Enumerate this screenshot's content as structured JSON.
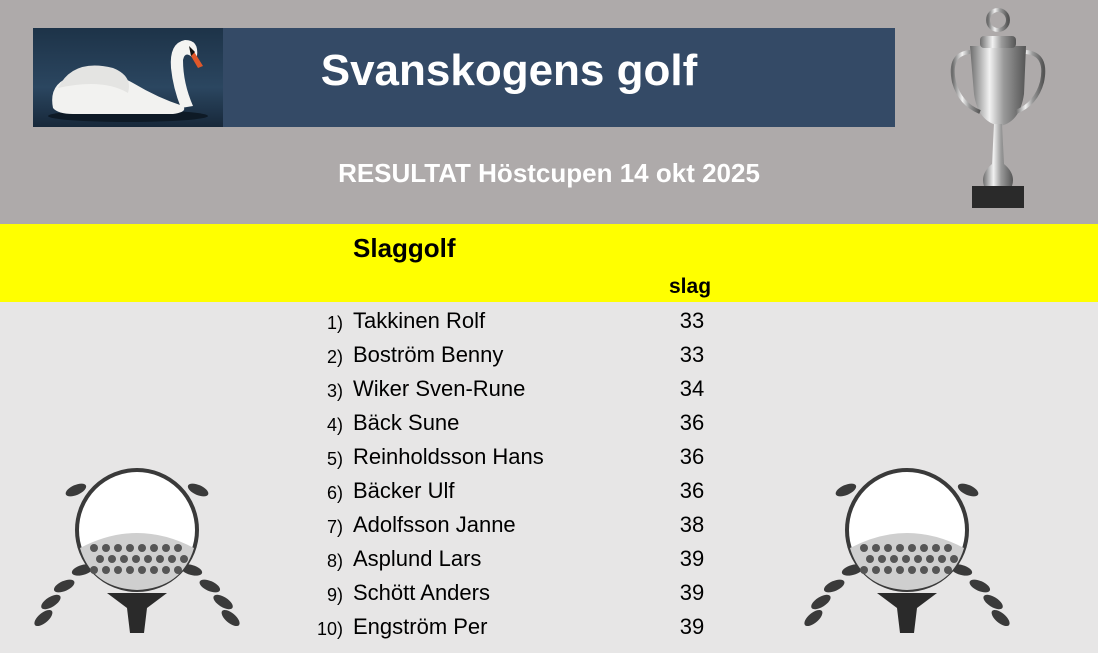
{
  "header": {
    "title": "Svanskogens golf",
    "subtitle": "RESULTAT Höstcupen 14 okt  2025"
  },
  "results": {
    "section_title": "Slaggolf",
    "score_column": "slag",
    "rows": [
      {
        "rank": "1)",
        "name": "Takkinen Rolf",
        "score": "33"
      },
      {
        "rank": "2)",
        "name": "Boström Benny",
        "score": "33"
      },
      {
        "rank": "3)",
        "name": "Wiker Sven-Rune",
        "score": "34"
      },
      {
        "rank": "4)",
        "name": "Bäck Sune",
        "score": "36"
      },
      {
        "rank": "5)",
        "name": "Reinholdsson Hans",
        "score": "36"
      },
      {
        "rank": "6)",
        "name": "Bäcker Ulf",
        "score": "36"
      },
      {
        "rank": "7)",
        "name": "Adolfsson Janne",
        "score": "38"
      },
      {
        "rank": "8)",
        "name": "Asplund Lars",
        "score": "39"
      },
      {
        "rank": "9)",
        "name": "Schött Anders",
        "score": "39"
      },
      {
        "rank": "10)",
        "name": "Engström Per",
        "score": "39"
      }
    ]
  },
  "colors": {
    "top": "#aeaaaa",
    "banner": "#344a66",
    "highlight": "#ffff00",
    "body": "#e7e6e6"
  }
}
